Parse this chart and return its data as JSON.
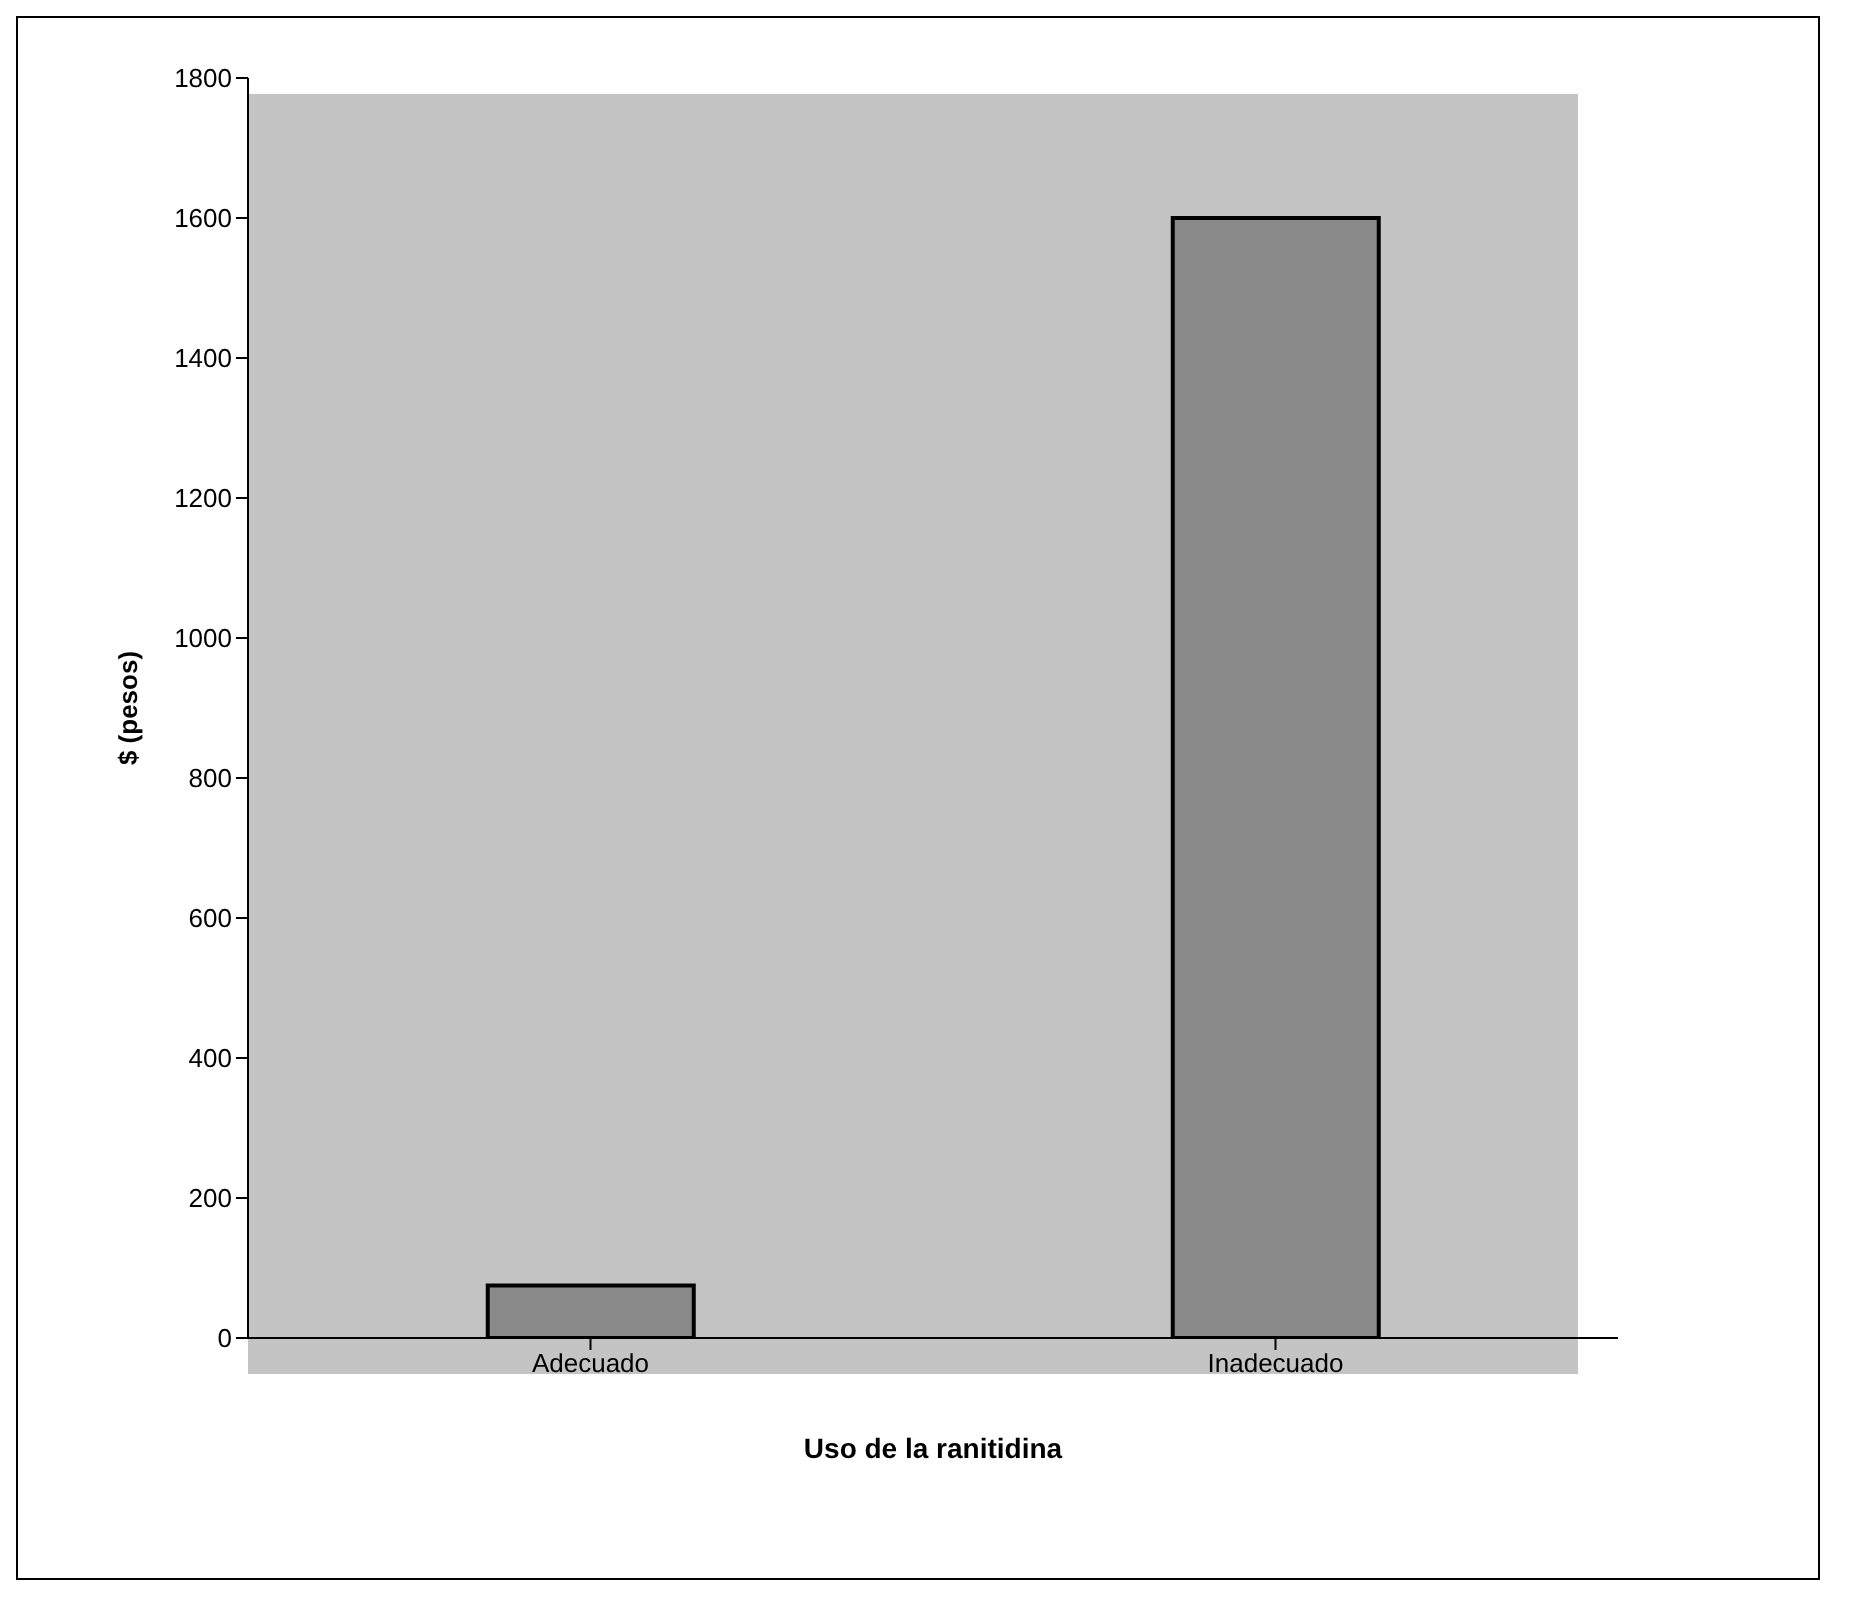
{
  "chart_data": {
    "type": "bar",
    "xlabel": "Uso de la ranitidina",
    "ylabel": "$ (pesos)",
    "categories": [
      "Adecuado",
      "Inadecuado"
    ],
    "values": [
      75,
      1600
    ],
    "color": "#8a8a8a",
    "ylim": [
      0,
      1800
    ],
    "yticks": [
      0,
      200,
      400,
      600,
      800,
      1000,
      1200,
      1400,
      1600,
      1800
    ],
    "grid": false,
    "legend": false
  }
}
